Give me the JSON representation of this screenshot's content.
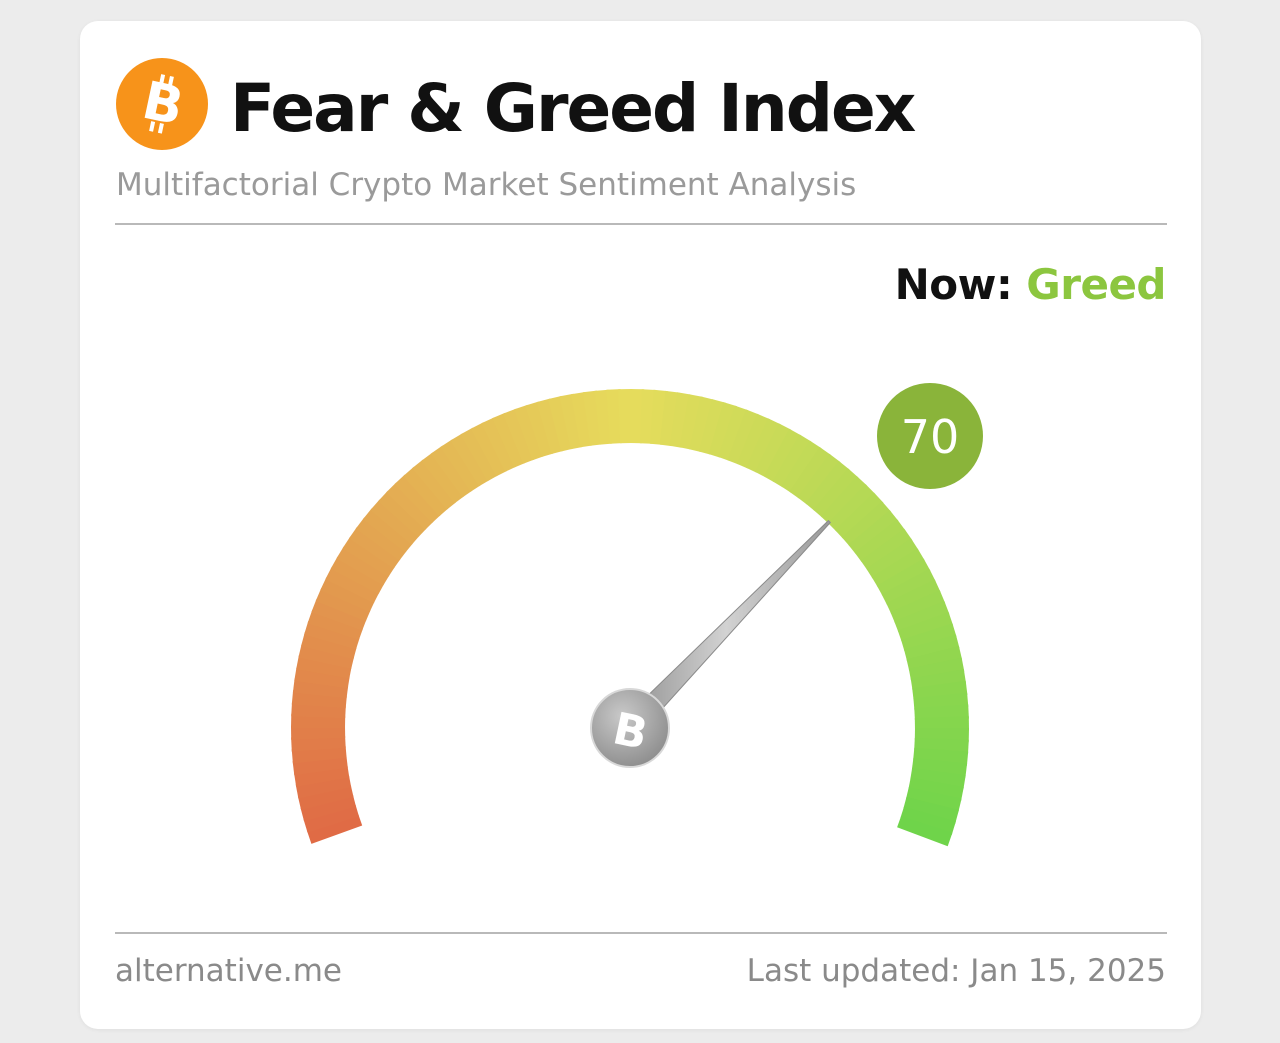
{
  "header": {
    "logo_icon": "bitcoin-icon",
    "title": "Fear & Greed Index",
    "subtitle": "Multifactorial Crypto Market Sentiment Analysis"
  },
  "status": {
    "now_label": "Now:",
    "now_value": "Greed",
    "now_color": "#8cc63f"
  },
  "gauge": {
    "value": 70,
    "value_label": "70",
    "min": 0,
    "max": 100,
    "badge_color": "#8ab43a",
    "colors": {
      "fear": "#e06a45",
      "neutral": "#e6dc5c",
      "greed": "#6ed44a"
    },
    "hub_icon": "bitcoin-icon"
  },
  "footer": {
    "source": "alternative.me",
    "last_updated": "Last updated: Jan 15, 2025"
  }
}
